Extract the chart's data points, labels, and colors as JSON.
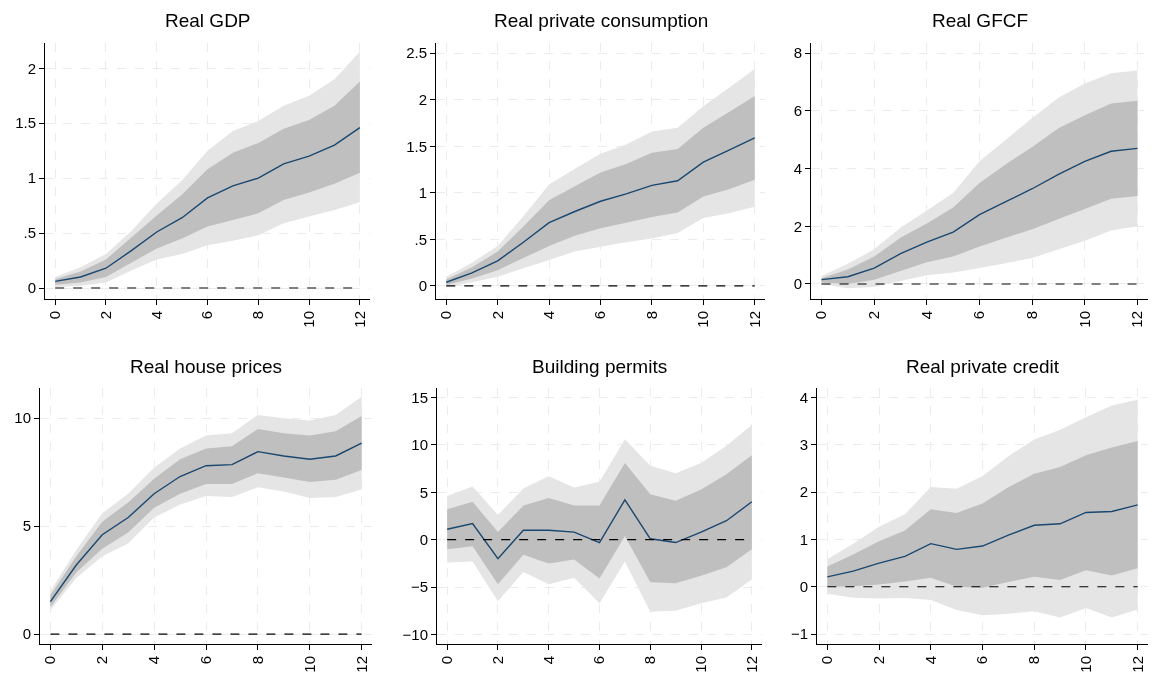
{
  "chart_data": [
    {
      "type": "line",
      "title": "Real GDP",
      "x": [
        0,
        1,
        2,
        3,
        4,
        5,
        6,
        7,
        8,
        9,
        10,
        11,
        12
      ],
      "xlim": [
        -0.4,
        12.4
      ],
      "xticks": [
        0,
        2,
        4,
        6,
        8,
        10,
        12
      ],
      "ylim": [
        -0.1,
        2.23
      ],
      "yticks": [
        0,
        {
          "value": 0.5,
          "label": ".5"
        },
        1,
        1.5,
        2
      ],
      "grid": true,
      "line_style": "solid",
      "ref_lines": [
        {
          "axis": "y",
          "value": 0,
          "line_style": "dashed",
          "color": "#000000"
        }
      ],
      "series": [
        {
          "color": "#e5e5e5",
          "values": [
            null,
            null,
            null,
            null,
            null,
            null,
            null,
            null,
            null,
            null,
            null,
            null,
            null
          ],
          "lower": [
            0.01,
            0.02,
            0.05,
            0.16,
            0.26,
            0.31,
            0.39,
            0.43,
            0.48,
            0.59,
            0.65,
            0.71,
            0.78
          ],
          "upper": [
            0.1,
            0.19,
            0.31,
            0.52,
            0.77,
            0.98,
            1.25,
            1.43,
            1.52,
            1.66,
            1.75,
            1.9,
            2.15
          ]
        },
        {
          "color": "#bfbfbf",
          "values": [
            null,
            null,
            null,
            null,
            null,
            null,
            null,
            null,
            null,
            null,
            null,
            null,
            null
          ],
          "lower": [
            0.03,
            0.05,
            0.1,
            0.23,
            0.36,
            0.45,
            0.56,
            0.62,
            0.68,
            0.8,
            0.87,
            0.95,
            1.05
          ],
          "upper": [
            0.08,
            0.15,
            0.26,
            0.46,
            0.66,
            0.85,
            1.08,
            1.23,
            1.32,
            1.45,
            1.53,
            1.66,
            1.88
          ]
        },
        {
          "color": "#1a476f",
          "values": [
            0.06,
            0.1,
            0.18,
            0.34,
            0.51,
            0.64,
            0.82,
            0.93,
            1.0,
            1.13,
            1.2,
            1.3,
            1.46
          ]
        }
      ]
    },
    {
      "type": "line",
      "title": "Real private consumption",
      "x": [
        0,
        1,
        2,
        3,
        4,
        5,
        6,
        7,
        8,
        9,
        10,
        11,
        12
      ],
      "xlim": [
        -0.4,
        12.4
      ],
      "xticks": [
        0,
        2,
        4,
        6,
        8,
        10,
        12
      ],
      "ylim": [
        -0.14,
        2.61
      ],
      "yticks": [
        0,
        {
          "value": 0.5,
          "label": ".5"
        },
        1,
        1.5,
        2,
        2.5
      ],
      "grid": true,
      "line_style": "solid",
      "ref_lines": [
        {
          "axis": "y",
          "value": 0,
          "line_style": "dashed",
          "color": "#000000"
        }
      ],
      "series": [
        {
          "color": "#e5e5e5",
          "values": [
            null,
            null,
            null,
            null,
            null,
            null,
            null,
            null,
            null,
            null,
            null,
            null,
            null
          ],
          "lower": [
            -0.01,
            0.04,
            0.1,
            0.19,
            0.28,
            0.37,
            0.42,
            0.47,
            0.51,
            0.57,
            0.73,
            0.78,
            0.85
          ],
          "upper": [
            0.1,
            0.25,
            0.43,
            0.75,
            1.09,
            1.26,
            1.42,
            1.52,
            1.66,
            1.7,
            1.93,
            2.13,
            2.33
          ]
        },
        {
          "color": "#bfbfbf",
          "values": [
            null,
            null,
            null,
            null,
            null,
            null,
            null,
            null,
            null,
            null,
            null,
            null,
            null
          ],
          "lower": [
            0.01,
            0.08,
            0.17,
            0.3,
            0.43,
            0.54,
            0.62,
            0.68,
            0.74,
            0.79,
            0.96,
            1.04,
            1.14
          ],
          "upper": [
            0.07,
            0.2,
            0.37,
            0.64,
            0.92,
            1.07,
            1.22,
            1.31,
            1.43,
            1.47,
            1.7,
            1.87,
            2.04
          ]
        },
        {
          "color": "#1a476f",
          "values": [
            0.04,
            0.14,
            0.27,
            0.47,
            0.68,
            0.8,
            0.91,
            0.99,
            1.08,
            1.13,
            1.33,
            1.46,
            1.59
          ]
        }
      ]
    },
    {
      "type": "line",
      "title": "Real GFCF",
      "x": [
        0,
        1,
        2,
        3,
        4,
        5,
        6,
        7,
        8,
        9,
        10,
        11,
        12
      ],
      "xlim": [
        -0.4,
        12.4
      ],
      "xticks": [
        0,
        2,
        4,
        6,
        8,
        10,
        12
      ],
      "ylim": [
        -0.52,
        8.35
      ],
      "yticks": [
        0,
        2,
        4,
        6,
        8
      ],
      "grid": true,
      "line_style": "solid",
      "ref_lines": [
        {
          "axis": "y",
          "value": 0,
          "line_style": "dashed",
          "color": "#000000"
        }
      ],
      "series": [
        {
          "color": "#e5e5e5",
          "values": [
            null,
            null,
            null,
            null,
            null,
            null,
            null,
            null,
            null,
            null,
            null,
            null,
            null
          ],
          "lower": [
            0.0,
            -0.15,
            -0.1,
            0.1,
            0.3,
            0.4,
            0.55,
            0.72,
            0.9,
            1.2,
            1.5,
            1.85,
            2.0
          ],
          "upper": [
            0.28,
            0.7,
            1.2,
            1.95,
            2.55,
            3.15,
            4.25,
            5.0,
            5.75,
            6.45,
            6.95,
            7.3,
            7.4
          ]
        },
        {
          "color": "#bfbfbf",
          "values": [
            null,
            null,
            null,
            null,
            null,
            null,
            null,
            null,
            null,
            null,
            null,
            null,
            null
          ],
          "lower": [
            0.05,
            0.0,
            0.15,
            0.45,
            0.75,
            0.95,
            1.3,
            1.6,
            1.9,
            2.25,
            2.6,
            2.95,
            3.05
          ],
          "upper": [
            0.2,
            0.5,
            0.95,
            1.6,
            2.1,
            2.65,
            3.5,
            4.15,
            4.75,
            5.4,
            5.85,
            6.25,
            6.35
          ]
        },
        {
          "color": "#1a476f",
          "values": [
            0.15,
            0.25,
            0.55,
            1.05,
            1.45,
            1.8,
            2.4,
            2.85,
            3.3,
            3.8,
            4.25,
            4.6,
            4.7
          ]
        }
      ]
    },
    {
      "type": "line",
      "title": "Real house prices",
      "x": [
        0,
        1,
        2,
        3,
        4,
        5,
        6,
        7,
        8,
        9,
        10,
        11,
        12
      ],
      "xlim": [
        -0.4,
        12.4
      ],
      "xticks": [
        0,
        2,
        4,
        6,
        8,
        10,
        12
      ],
      "ylim": [
        -0.46,
        11.4
      ],
      "yticks": [
        0,
        5,
        10
      ],
      "grid": true,
      "line_style": "solid",
      "ref_lines": [
        {
          "axis": "y",
          "value": 0,
          "line_style": "dashed",
          "color": "#000000"
        }
      ],
      "series": [
        {
          "color": "#e5e5e5",
          "values": [
            null,
            null,
            null,
            null,
            null,
            null,
            null,
            null,
            null,
            null,
            null,
            null,
            null
          ],
          "lower": [
            1.1,
            2.6,
            3.6,
            4.2,
            5.4,
            6.0,
            6.4,
            6.35,
            6.8,
            6.6,
            6.3,
            6.35,
            6.7
          ],
          "upper": [
            2.0,
            3.9,
            5.6,
            6.5,
            7.7,
            8.6,
            9.2,
            9.3,
            10.15,
            10.0,
            9.9,
            10.15,
            11.0
          ]
        },
        {
          "color": "#bfbfbf",
          "values": [
            null,
            null,
            null,
            null,
            null,
            null,
            null,
            null,
            null,
            null,
            null,
            null,
            null
          ],
          "lower": [
            1.25,
            2.85,
            3.95,
            4.7,
            5.85,
            6.5,
            6.95,
            6.95,
            7.45,
            7.25,
            7.05,
            7.15,
            7.6
          ],
          "upper": [
            1.8,
            3.6,
            5.2,
            6.1,
            7.2,
            8.1,
            8.6,
            8.7,
            9.5,
            9.3,
            9.2,
            9.4,
            10.1
          ]
        },
        {
          "color": "#1a476f",
          "values": [
            1.5,
            3.2,
            4.6,
            5.4,
            6.5,
            7.3,
            7.8,
            7.85,
            8.45,
            8.25,
            8.1,
            8.25,
            8.85
          ]
        }
      ]
    },
    {
      "type": "line",
      "title": "Building permits",
      "x": [
        0,
        1,
        2,
        3,
        4,
        5,
        6,
        7,
        8,
        9,
        10,
        11,
        12
      ],
      "xlim": [
        -0.4,
        12.4
      ],
      "xticks": [
        0,
        2,
        4,
        6,
        8,
        10,
        12
      ],
      "ylim": [
        -11.0,
        16.0
      ],
      "yticks": [
        {
          "value": -10,
          "label": "−10"
        },
        {
          "value": -5,
          "label": "−5"
        },
        0,
        5,
        10,
        15
      ],
      "grid": true,
      "line_style": "solid",
      "ref_lines": [
        {
          "axis": "y",
          "value": 0,
          "line_style": "dashed",
          "color": "#000000"
        }
      ],
      "series": [
        {
          "color": "#e5e5e5",
          "values": [
            null,
            null,
            null,
            null,
            null,
            null,
            null,
            null,
            null,
            null,
            null,
            null,
            null
          ],
          "lower": [
            -2.4,
            -2.3,
            -6.5,
            -3.4,
            -4.7,
            -4.0,
            -6.7,
            -2.3,
            -7.6,
            -7.5,
            -6.7,
            -6.1,
            -4.2
          ],
          "upper": [
            4.6,
            5.6,
            2.6,
            5.4,
            6.7,
            5.5,
            6.1,
            10.6,
            7.8,
            7.0,
            8.1,
            9.9,
            12.1
          ]
        },
        {
          "color": "#bfbfbf",
          "values": [
            null,
            null,
            null,
            null,
            null,
            null,
            null,
            null,
            null,
            null,
            null,
            null,
            null
          ],
          "lower": [
            -1.0,
            -0.7,
            -4.7,
            -1.6,
            -2.5,
            -2.1,
            -4.1,
            0.4,
            -4.5,
            -4.6,
            -3.8,
            -2.9,
            -1.0
          ],
          "upper": [
            3.2,
            4.0,
            0.8,
            3.6,
            4.4,
            3.6,
            3.6,
            8.1,
            4.8,
            4.1,
            5.3,
            6.9,
            8.9
          ]
        },
        {
          "color": "#1a476f",
          "values": [
            1.1,
            1.7,
            -2.0,
            1.0,
            1.0,
            0.8,
            -0.3,
            4.2,
            0.1,
            -0.3,
            0.8,
            2.0,
            4.0
          ]
        }
      ]
    },
    {
      "type": "line",
      "title": "Real private credit",
      "x": [
        0,
        1,
        2,
        3,
        4,
        5,
        6,
        7,
        8,
        9,
        10,
        11,
        12
      ],
      "xlim": [
        -0.4,
        12.4
      ],
      "xticks": [
        0,
        2,
        4,
        6,
        8,
        10,
        12
      ],
      "ylim": [
        -1.21,
        4.2
      ],
      "yticks": [
        {
          "value": -1,
          "label": "−1"
        },
        0,
        1,
        2,
        3,
        4
      ],
      "grid": true,
      "line_style": "solid",
      "ref_lines": [
        {
          "axis": "y",
          "value": 0,
          "line_style": "dashed",
          "color": "#000000"
        }
      ],
      "series": [
        {
          "color": "#e5e5e5",
          "values": [
            null,
            null,
            null,
            null,
            null,
            null,
            null,
            null,
            null,
            null,
            null,
            null,
            null
          ],
          "lower": [
            -0.15,
            -0.23,
            -0.25,
            -0.24,
            -0.28,
            -0.49,
            -0.6,
            -0.57,
            -0.52,
            -0.65,
            -0.45,
            -0.65,
            -0.48
          ],
          "upper": [
            0.58,
            0.91,
            1.27,
            1.53,
            2.11,
            2.07,
            2.34,
            2.76,
            3.11,
            3.32,
            3.58,
            3.83,
            3.95
          ]
        },
        {
          "color": "#bfbfbf",
          "values": [
            null,
            null,
            null,
            null,
            null,
            null,
            null,
            null,
            null,
            null,
            null,
            null,
            null
          ],
          "lower": [
            0.0,
            0.01,
            0.05,
            0.11,
            0.19,
            0.0,
            -0.02,
            0.1,
            0.21,
            0.14,
            0.35,
            0.24,
            0.39
          ],
          "upper": [
            0.43,
            0.68,
            0.96,
            1.19,
            1.64,
            1.56,
            1.76,
            2.1,
            2.39,
            2.53,
            2.78,
            2.94,
            3.08
          ]
        },
        {
          "color": "#1a476f",
          "values": [
            0.21,
            0.33,
            0.5,
            0.64,
            0.91,
            0.79,
            0.86,
            1.09,
            1.3,
            1.33,
            1.57,
            1.59,
            1.73
          ]
        }
      ]
    }
  ]
}
